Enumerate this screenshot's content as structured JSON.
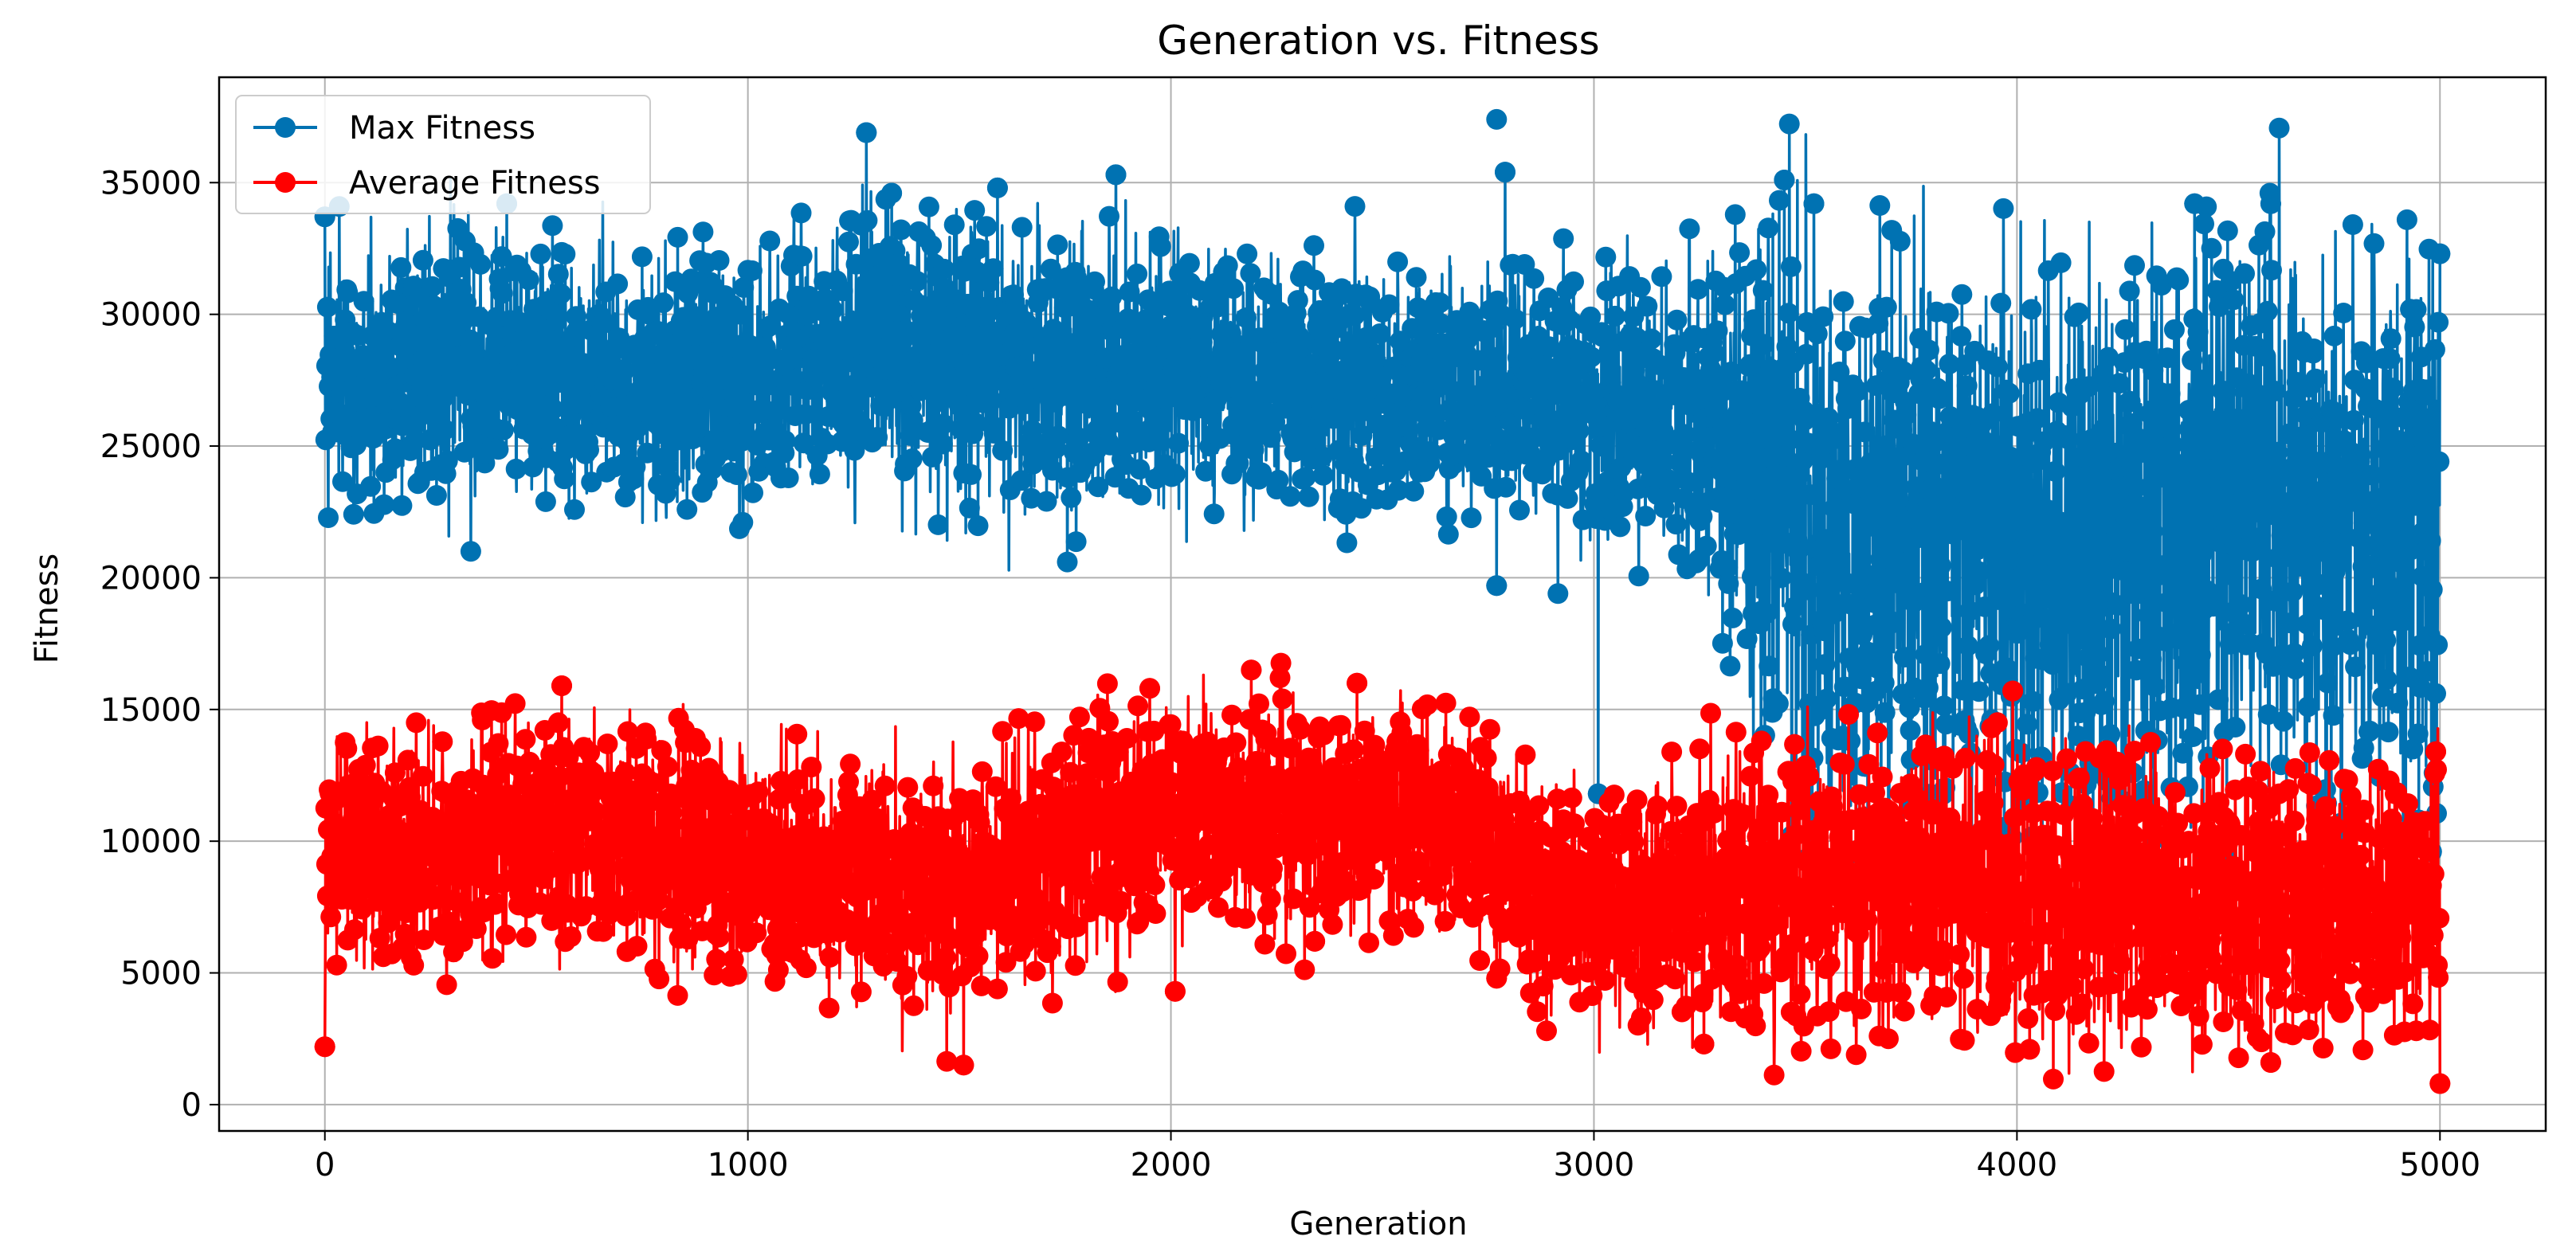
{
  "chart_data": {
    "type": "line",
    "title": "Generation vs. Fitness",
    "xlabel": "Generation",
    "ylabel": "Fitness",
    "xlim": [
      -250,
      5250
    ],
    "ylim": [
      -1000,
      39000
    ],
    "xticks": [
      0,
      1000,
      2000,
      3000,
      4000,
      5000
    ],
    "yticks": [
      0,
      5000,
      10000,
      15000,
      20000,
      25000,
      30000,
      35000
    ],
    "grid": true,
    "legend_position": "top-left",
    "marker": "circle",
    "generations": 5001,
    "series": [
      {
        "name": "Max Fitness",
        "color": "#0072b2",
        "x": [
          0,
          250,
          500,
          750,
          1000,
          1250,
          1500,
          1750,
          2000,
          2250,
          2500,
          2750,
          3000,
          3250,
          3500,
          3750,
          4000,
          4250,
          4500,
          4750,
          5000
        ],
        "mean": [
          27500,
          28000,
          28200,
          27400,
          27500,
          28600,
          28300,
          27500,
          28000,
          27300,
          27000,
          27300,
          26500,
          26300,
          23500,
          23000,
          22800,
          22800,
          23200,
          23300,
          23500
        ],
        "spread": [
          2400,
          2500,
          2500,
          2300,
          2400,
          2700,
          2600,
          2700,
          2600,
          2300,
          2200,
          2300,
          2400,
          2800,
          5200,
          4800,
          4600,
          4700,
          5000,
          4800,
          4800
        ],
        "extremes": [
          {
            "x": 0,
            "y": 33700
          },
          {
            "x": 345,
            "y": 21000
          },
          {
            "x": 430,
            "y": 34200
          },
          {
            "x": 1280,
            "y": 36900
          },
          {
            "x": 1340,
            "y": 34600
          },
          {
            "x": 1590,
            "y": 34800
          },
          {
            "x": 1755,
            "y": 20600
          },
          {
            "x": 1870,
            "y": 35300
          },
          {
            "x": 2435,
            "y": 34100
          },
          {
            "x": 2770,
            "y": 37400
          },
          {
            "x": 2790,
            "y": 35400
          },
          {
            "x": 2770,
            "y": 19700
          },
          {
            "x": 2915,
            "y": 19400
          },
          {
            "x": 3450,
            "y": 35100
          },
          {
            "x": 3520,
            "y": 34200
          },
          {
            "x": 3010,
            "y": 11800
          },
          {
            "x": 3500,
            "y": 9300
          },
          {
            "x": 4060,
            "y": 10200
          },
          {
            "x": 4250,
            "y": 9300
          },
          {
            "x": 4420,
            "y": 34200
          },
          {
            "x": 4600,
            "y": 34200
          },
          {
            "x": 4440,
            "y": 9500
          },
          {
            "x": 4980,
            "y": 9600
          },
          {
            "x": 5000,
            "y": 32300
          }
        ]
      },
      {
        "name": "Average Fitness",
        "color": "#ff0000",
        "x": [
          0,
          250,
          500,
          750,
          1000,
          1250,
          1500,
          1750,
          2000,
          2250,
          2500,
          2750,
          3000,
          3250,
          3500,
          3750,
          4000,
          4250,
          4500,
          4750,
          5000
        ],
        "mean": [
          9800,
          9600,
          10300,
          9900,
          9500,
          8600,
          8400,
          9900,
          11200,
          11000,
          11200,
          9800,
          7400,
          8000,
          8600,
          8300,
          8400,
          8200,
          7700,
          7600,
          8200
        ],
        "spread": [
          2000,
          2100,
          2200,
          2100,
          2000,
          2200,
          2200,
          2100,
          2000,
          2000,
          1800,
          2100,
          1900,
          2300,
          2600,
          2600,
          2600,
          2600,
          2600,
          2500,
          2500
        ],
        "extremes": [
          {
            "x": 0,
            "y": 2200
          },
          {
            "x": 560,
            "y": 15900
          },
          {
            "x": 1510,
            "y": 1500
          },
          {
            "x": 1950,
            "y": 15800
          },
          {
            "x": 2010,
            "y": 4300
          },
          {
            "x": 2190,
            "y": 16500
          },
          {
            "x": 2340,
            "y": 6200
          },
          {
            "x": 2440,
            "y": 16000
          },
          {
            "x": 2770,
            "y": 4800
          },
          {
            "x": 3260,
            "y": 2300
          },
          {
            "x": 3990,
            "y": 15700
          },
          {
            "x": 4030,
            "y": 2100
          },
          {
            "x": 4600,
            "y": 1600
          },
          {
            "x": 4990,
            "y": 13400
          },
          {
            "x": 5000,
            "y": 800
          }
        ]
      }
    ]
  }
}
